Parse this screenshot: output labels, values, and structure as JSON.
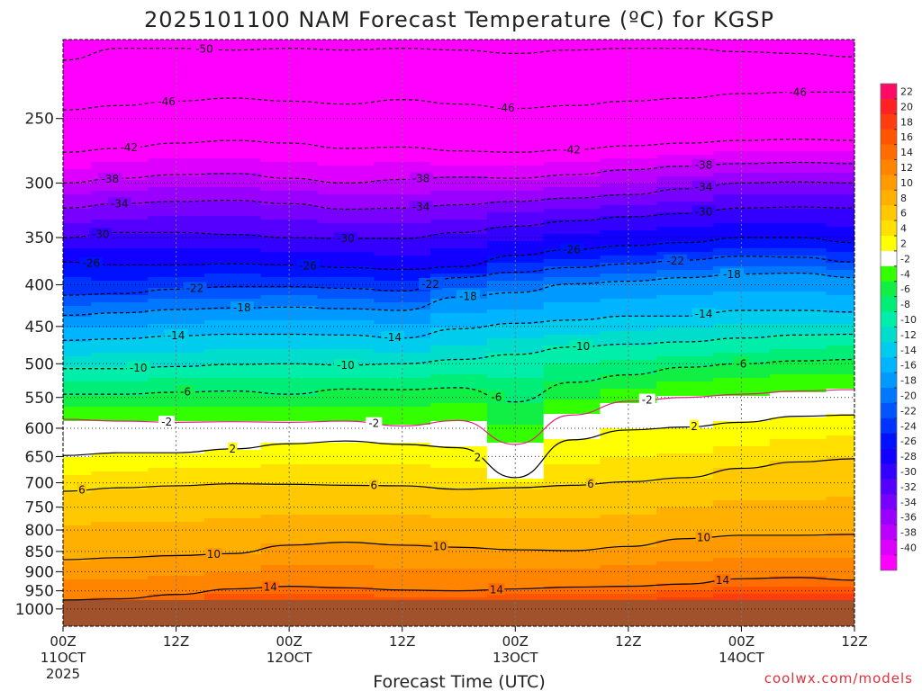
{
  "chart_data": {
    "type": "heatmap",
    "title": "2025101100 NAM Forecast Temperature (ºC) for KGSP",
    "xlabel": "Forecast Time (UTC)",
    "ylabel": "",
    "credit": "coolwx.com/models",
    "y_scale": "log",
    "y_reversed": true,
    "ylim": [
      200,
      1050
    ],
    "ground_level_hpa": 975,
    "y_ticks": [
      250,
      300,
      350,
      400,
      450,
      500,
      550,
      600,
      650,
      700,
      750,
      800,
      850,
      900,
      950,
      1000
    ],
    "xlim": [
      0,
      84
    ],
    "x_ticks": [
      {
        "hour": 0,
        "label": "00Z",
        "date": "11OCT",
        "year": "2025"
      },
      {
        "hour": 12,
        "label": "12Z",
        "date": "",
        "year": ""
      },
      {
        "hour": 24,
        "label": "00Z",
        "date": "12OCT",
        "year": ""
      },
      {
        "hour": 36,
        "label": "12Z",
        "date": "",
        "year": ""
      },
      {
        "hour": 48,
        "label": "00Z",
        "date": "13OCT",
        "year": ""
      },
      {
        "hour": 60,
        "label": "12Z",
        "date": "",
        "year": ""
      },
      {
        "hour": 72,
        "label": "00Z",
        "date": "14OCT",
        "year": ""
      },
      {
        "hour": 84,
        "label": "12Z",
        "date": "",
        "year": ""
      }
    ],
    "hours": [
      0,
      6,
      12,
      18,
      24,
      30,
      36,
      42,
      48,
      54,
      60,
      66,
      72,
      78,
      84
    ],
    "isotherms": [
      {
        "temp": -50,
        "p": [
          212,
          205,
          205,
          206,
          205,
          206,
          205,
          206,
          208,
          206,
          205,
          205,
          207,
          208,
          210
        ]
      },
      {
        "temp": -46,
        "p": [
          244,
          241,
          238,
          236,
          238,
          240,
          237,
          240,
          243,
          241,
          238,
          236,
          233,
          232,
          232
        ]
      },
      {
        "temp": -42,
        "p": [
          275,
          272,
          268,
          266,
          268,
          272,
          271,
          274,
          275,
          273,
          270,
          268,
          266,
          265,
          266
        ]
      },
      {
        "temp": -38,
        "p": [
          300,
          296,
          293,
          292,
          296,
          300,
          297,
          295,
          296,
          293,
          289,
          286,
          284,
          283,
          284
        ]
      },
      {
        "temp": -34,
        "p": [
          322,
          318,
          316,
          315,
          318,
          323,
          322,
          319,
          316,
          313,
          310,
          305,
          300,
          299,
          300
        ]
      },
      {
        "temp": -30,
        "p": [
          350,
          345,
          345,
          347,
          350,
          351,
          351,
          345,
          339,
          334,
          330,
          327,
          322,
          321,
          322
        ]
      },
      {
        "temp": -26,
        "p": [
          375,
          378,
          378,
          377,
          378,
          381,
          383,
          380,
          368,
          362,
          358,
          355,
          350,
          350,
          355
        ]
      },
      {
        "temp": -22,
        "p": [
          412,
          410,
          405,
          402,
          402,
          404,
          407,
          392,
          386,
          381,
          377,
          373,
          369,
          370,
          375
        ]
      },
      {
        "temp": -18,
        "p": [
          436,
          433,
          429,
          427,
          426,
          428,
          430,
          414,
          409,
          399,
          396,
          392,
          388,
          387,
          392
        ]
      },
      {
        "temp": -14,
        "p": [
          468,
          466,
          462,
          460,
          460,
          461,
          465,
          453,
          446,
          442,
          437,
          437,
          430,
          430,
          432
        ]
      },
      {
        "temp": -10,
        "p": [
          507,
          507,
          504,
          501,
          500,
          502,
          500,
          494,
          487,
          477,
          473,
          470,
          465,
          461,
          460
        ]
      },
      {
        "temp": -6,
        "p": [
          545,
          545,
          542,
          540,
          545,
          537,
          538,
          535,
          557,
          527,
          516,
          505,
          500,
          496,
          494
        ]
      },
      {
        "temp": -2,
        "p": [
          585,
          588,
          590,
          589,
          590,
          588,
          596,
          587,
          628,
          578,
          556,
          550,
          545,
          540,
          538
        ]
      },
      {
        "temp": 2,
        "p": [
          648,
          643,
          643,
          636,
          627,
          622,
          628,
          634,
          690,
          620,
          603,
          598,
          590,
          580,
          578
        ]
      },
      {
        "temp": 6,
        "p": [
          717,
          710,
          706,
          702,
          703,
          705,
          706,
          713,
          710,
          705,
          698,
          690,
          672,
          660,
          654
        ]
      },
      {
        "temp": 10,
        "p": [
          870,
          865,
          860,
          855,
          835,
          828,
          835,
          840,
          846,
          848,
          838,
          820,
          812,
          812,
          810
        ]
      },
      {
        "temp": 14,
        "p": [
          975,
          972,
          960,
          945,
          938,
          942,
          948,
          950,
          945,
          940,
          938,
          932,
          918,
          915,
          922
        ]
      }
    ],
    "contour_labels": [
      {
        "temp": -50,
        "hour": 15
      },
      {
        "temp": -46,
        "hour": 78
      },
      {
        "temp": -46,
        "hour": 11
      },
      {
        "temp": -46,
        "hour": 47
      },
      {
        "temp": -42,
        "hour": 7
      },
      {
        "temp": -42,
        "hour": 54
      },
      {
        "temp": -38,
        "hour": 5
      },
      {
        "temp": -38,
        "hour": 38
      },
      {
        "temp": -38,
        "hour": 68
      },
      {
        "temp": -34,
        "hour": 6
      },
      {
        "temp": -34,
        "hour": 38
      },
      {
        "temp": -34,
        "hour": 68
      },
      {
        "temp": -30,
        "hour": 4
      },
      {
        "temp": -30,
        "hour": 30
      },
      {
        "temp": -30,
        "hour": 68
      },
      {
        "temp": -26,
        "hour": 3
      },
      {
        "temp": -26,
        "hour": 26
      },
      {
        "temp": -26,
        "hour": 54
      },
      {
        "temp": -22,
        "hour": 14
      },
      {
        "temp": -22,
        "hour": 39
      },
      {
        "temp": -22,
        "hour": 65
      },
      {
        "temp": -18,
        "hour": 19
      },
      {
        "temp": -18,
        "hour": 43
      },
      {
        "temp": -18,
        "hour": 71
      },
      {
        "temp": -14,
        "hour": 12
      },
      {
        "temp": -14,
        "hour": 35
      },
      {
        "temp": -14,
        "hour": 68
      },
      {
        "temp": -10,
        "hour": 8
      },
      {
        "temp": -10,
        "hour": 30
      },
      {
        "temp": -10,
        "hour": 55
      },
      {
        "temp": -6,
        "hour": 13
      },
      {
        "temp": -6,
        "hour": 46
      },
      {
        "temp": -6,
        "hour": 72
      },
      {
        "temp": -2,
        "hour": 11
      },
      {
        "temp": -2,
        "hour": 33
      },
      {
        "temp": -2,
        "hour": 62
      },
      {
        "temp": 2,
        "hour": 18
      },
      {
        "temp": 2,
        "hour": 44
      },
      {
        "temp": 2,
        "hour": 67
      },
      {
        "temp": 6,
        "hour": 2
      },
      {
        "temp": 6,
        "hour": 33
      },
      {
        "temp": 6,
        "hour": 56
      },
      {
        "temp": 10,
        "hour": 16
      },
      {
        "temp": 10,
        "hour": 40
      },
      {
        "temp": 10,
        "hour": 68
      },
      {
        "temp": 14,
        "hour": 22
      },
      {
        "temp": 14,
        "hour": 46
      },
      {
        "temp": 14,
        "hour": 70
      }
    ],
    "colorbar": {
      "levels": [
        22,
        20,
        18,
        16,
        14,
        12,
        10,
        8,
        6,
        4,
        2,
        -2,
        -4,
        -6,
        -8,
        -10,
        -12,
        -14,
        -16,
        -18,
        -20,
        -22,
        -24,
        -26,
        -28,
        -30,
        -32,
        -34,
        -36,
        -38,
        -40
      ],
      "colors": [
        "#ff0a66",
        "#ff2222",
        "#ff3d10",
        "#ff5500",
        "#ff6c00",
        "#ff8400",
        "#ff9a00",
        "#ffb000",
        "#ffc800",
        "#ffe000",
        "#ffff00",
        "#ffffff",
        "#33ff00",
        "#11ee44",
        "#00ee77",
        "#00eeaa",
        "#00ddcc",
        "#00ccee",
        "#00b4ff",
        "#0099ff",
        "#0077ff",
        "#0055ff",
        "#0033ff",
        "#0011ff",
        "#1100ff",
        "#3300ff",
        "#5500ff",
        "#7700ff",
        "#9900ff",
        "#bb00ff",
        "#dd00ff",
        "#ff00ff"
      ]
    }
  }
}
